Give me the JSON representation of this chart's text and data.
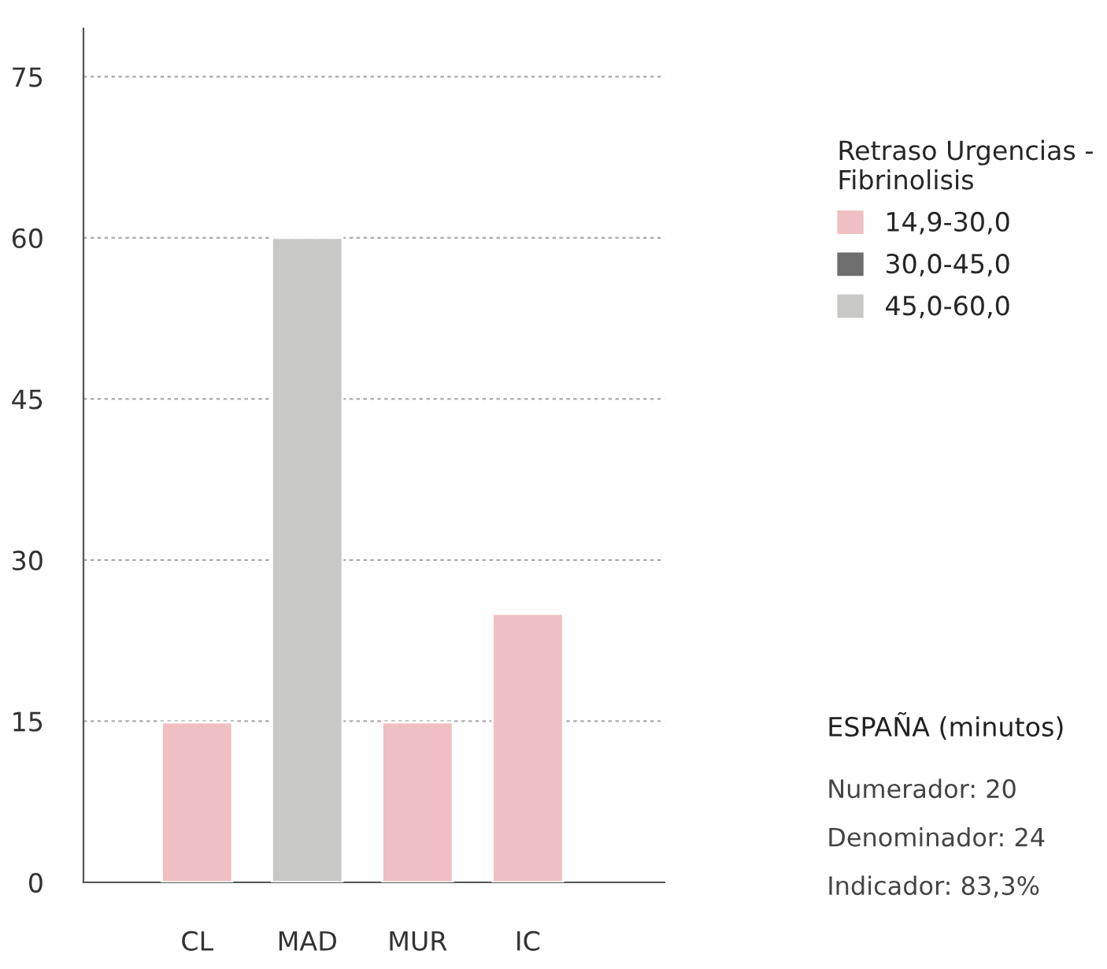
{
  "chart_data": {
    "type": "bar",
    "categories": [
      "CL",
      "MAD",
      "MUR",
      "IC"
    ],
    "series": [
      {
        "name": "14,9-30,0",
        "color": "#f0bfc3",
        "values": [
          14.9,
          null,
          14.9,
          25
        ]
      },
      {
        "name": "30,0-45,0",
        "color": "#6e6e6e",
        "values": [
          null,
          null,
          null,
          null
        ]
      },
      {
        "name": "45,0-60,0",
        "color": "#c8c8c6",
        "values": [
          null,
          60,
          null,
          null
        ]
      }
    ],
    "legend_title": "Retraso Urgencias -\nFibrinolisis",
    "legend": "right",
    "ylim": [
      0,
      79.5
    ],
    "yticks": [
      0,
      15,
      30,
      45,
      60,
      75
    ],
    "grid": "y",
    "annotations": [
      "ESPAÑA (minutos)",
      "Numerador: 20",
      "Denominador: 24",
      "Indicador: 83,3%"
    ]
  }
}
